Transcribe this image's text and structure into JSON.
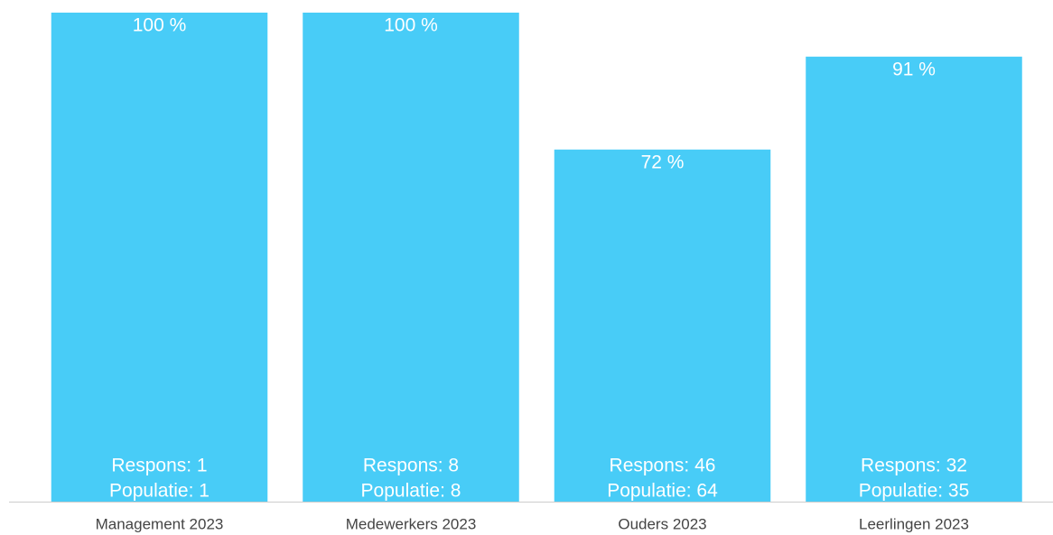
{
  "chart_data": {
    "type": "bar",
    "categories": [
      "Management 2023",
      "Medewerkers 2023",
      "Ouders 2023",
      "Leerlingen 2023"
    ],
    "values": [
      100,
      100,
      72,
      91
    ],
    "value_labels": [
      "100 %",
      "100 %",
      "72 %",
      "91 %"
    ],
    "annotations": [
      [
        "Respons: 1",
        "Populatie: 1"
      ],
      [
        "Respons: 8",
        "Populatie: 8"
      ],
      [
        "Respons: 46",
        "Populatie: 64"
      ],
      [
        "Respons: 32",
        "Populatie: 35"
      ]
    ],
    "color": "#48ccf7",
    "ylim": [
      0,
      100
    ]
  }
}
